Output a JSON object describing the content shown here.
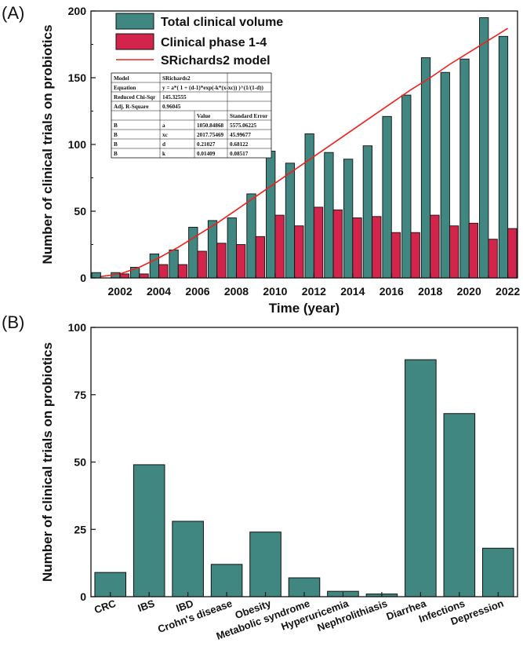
{
  "panel_a": {
    "label": "(A)"
  },
  "panel_b": {
    "label": "(B)"
  },
  "colors": {
    "total": "#3f8780",
    "phase": "#d3254c",
    "model": "#f0201c",
    "bar_edge": "#111111"
  },
  "chart_data": [
    {
      "type": "bar",
      "xlabel": "Time (year)",
      "ylabel": "Number of clinical trials on probiotics",
      "ylim": [
        0,
        200
      ],
      "xlim": [
        2000.5,
        2022.5
      ],
      "yticks": [
        0,
        50,
        100,
        150,
        200
      ],
      "xticks": [
        2002,
        2004,
        2006,
        2008,
        2010,
        2012,
        2014,
        2016,
        2018,
        2020,
        2022
      ],
      "x": [
        2001,
        2002,
        2003,
        2004,
        2005,
        2006,
        2007,
        2008,
        2009,
        2010,
        2011,
        2012,
        2013,
        2014,
        2015,
        2016,
        2017,
        2018,
        2019,
        2020,
        2021,
        2022
      ],
      "series": [
        {
          "name": "Total clinical volume",
          "values": [
            4,
            4,
            8,
            18,
            21,
            38,
            43,
            45,
            63,
            95,
            86,
            108,
            94,
            89,
            99,
            121,
            137,
            165,
            154,
            164,
            195,
            181
          ]
        },
        {
          "name": "Clinical phase 1-4",
          "values": [
            0,
            3,
            3,
            10,
            10,
            20,
            26,
            25,
            31,
            47,
            39,
            53,
            51,
            45,
            46,
            34,
            34,
            47,
            39,
            41,
            29,
            37
          ]
        }
      ],
      "model": {
        "name": "SRichards2 model",
        "x": [
          2001,
          2002,
          2003,
          2004,
          2005,
          2006,
          2007,
          2008,
          2009,
          2010,
          2011,
          2012,
          2013,
          2014,
          2015,
          2016,
          2017,
          2018,
          2019,
          2020,
          2021,
          2022
        ],
        "values": [
          1,
          3,
          8,
          15,
          23,
          32,
          41,
          51,
          61,
          71,
          81,
          91,
          101,
          111,
          121,
          131,
          141,
          150,
          160,
          169,
          178,
          187
        ]
      },
      "legend_position": "top-left",
      "stats_table": [
        [
          "Model",
          "SRichards2",
          "",
          ""
        ],
        [
          "Equation",
          "y = a*( 1 + (d-1)*exp(-k*(x-xc)) )^(1/(1-d))",
          "",
          ""
        ],
        [
          "Reduced Chi-Sqr",
          "145.32555",
          "",
          ""
        ],
        [
          "Adj. R-Square",
          "0.96045",
          "",
          ""
        ],
        [
          "",
          "",
          "Value",
          "Standard Error"
        ],
        [
          "B",
          "a",
          "1050.84868",
          "5575.06225"
        ],
        [
          "B",
          "xc",
          "2017.75469",
          "45.99677"
        ],
        [
          "B",
          "d",
          "0.21027",
          "0.68122"
        ],
        [
          "B",
          "k",
          "0.01409",
          "0.08517"
        ]
      ]
    },
    {
      "type": "bar",
      "xlabel": "",
      "ylabel": "Number of clinical trials on probiotics",
      "ylim": [
        0,
        100
      ],
      "yticks": [
        0,
        25,
        50,
        75,
        100
      ],
      "categories": [
        "CRC",
        "IBS",
        "IBD",
        "Crohn's disease",
        "Obesity",
        "Metabolic syndrome",
        "Hyperuricemia",
        "Nephrolithiasis",
        "Diarrhea",
        "Infections",
        "Depression"
      ],
      "values": [
        9,
        49,
        28,
        12,
        24,
        7,
        2,
        1,
        88,
        68,
        18
      ]
    }
  ]
}
